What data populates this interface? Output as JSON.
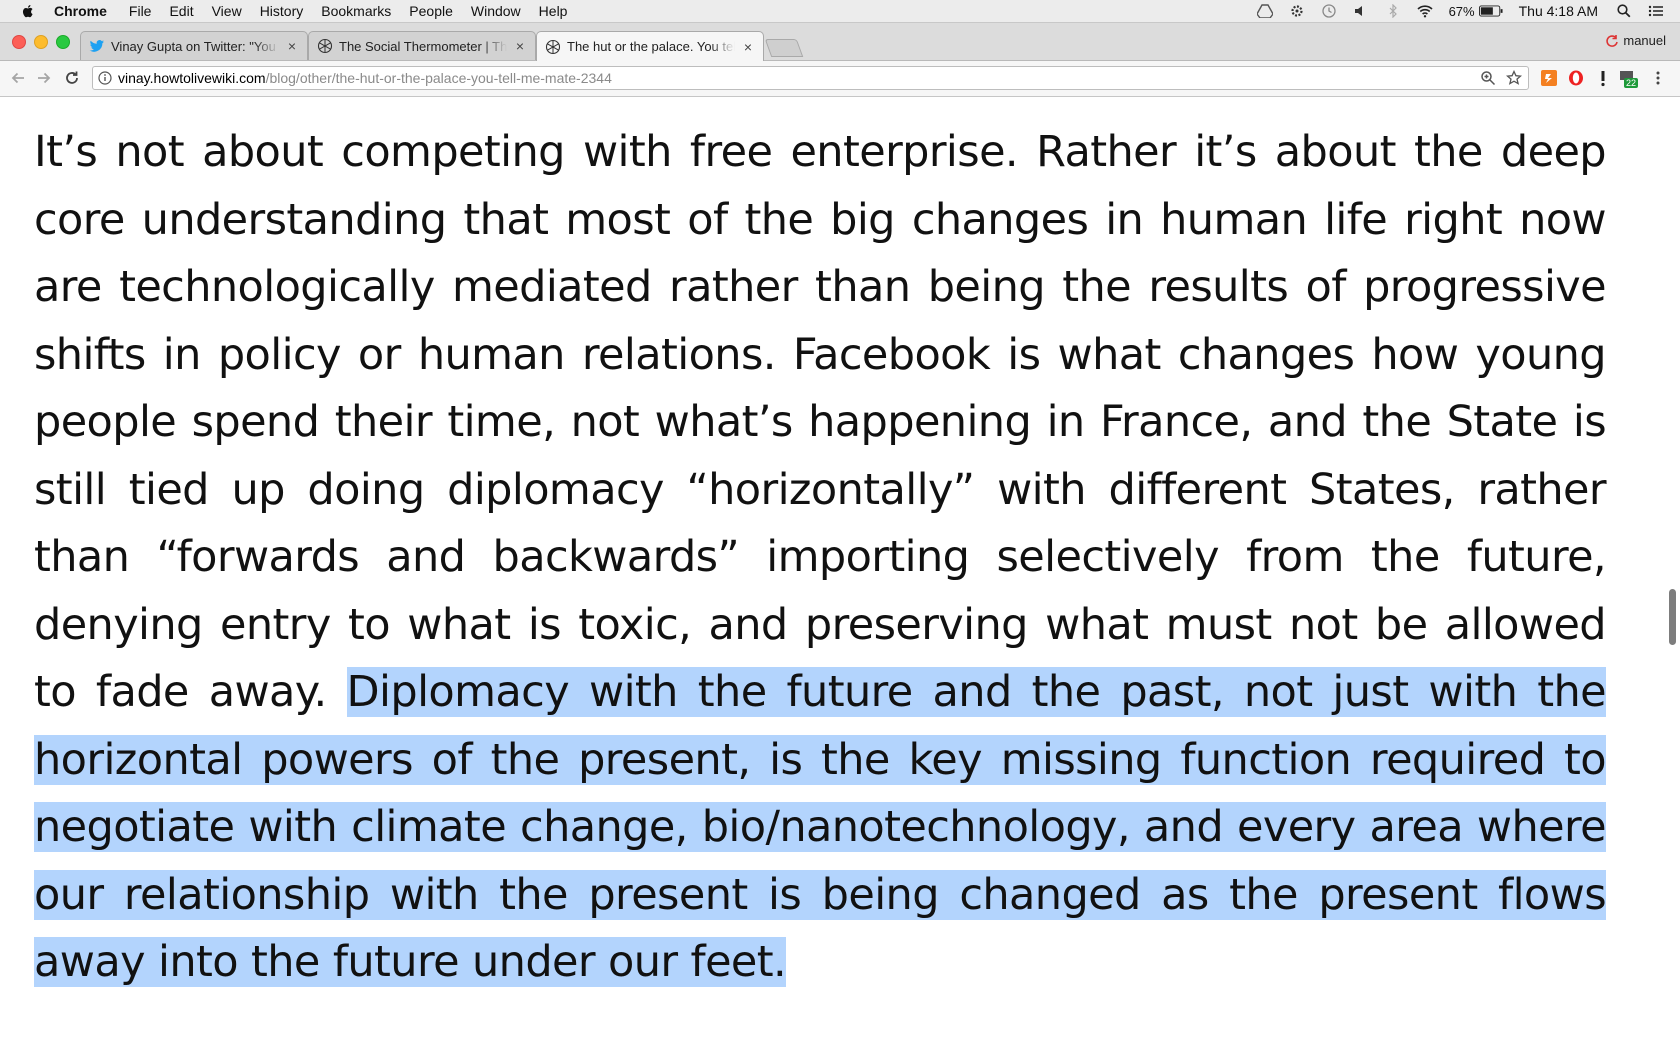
{
  "menubar": {
    "app": "Chrome",
    "items": [
      "File",
      "Edit",
      "View",
      "History",
      "Bookmarks",
      "People",
      "Window",
      "Help"
    ],
    "battery": "67%",
    "clock": "Thu 4:18 AM"
  },
  "tabs": [
    {
      "title": "Vinay Gupta on Twitter: \"You b",
      "favicon": "twitter-bird-icon",
      "close": "×"
    },
    {
      "title": "The Social Thermometer | The",
      "favicon": "hexayurt-icon",
      "close": "×"
    },
    {
      "title": "The hut or the palace. You tell",
      "favicon": "hexayurt-icon",
      "close": "×",
      "active": true
    }
  ],
  "profile": {
    "name": "manuel"
  },
  "toolbar": {
    "url_host": "vinay.howtolivewiki.com",
    "url_path": "/blog/other/the-hut-or-the-palace-you-tell-me-mate-2344",
    "extension_badge": "22"
  },
  "article": {
    "plain": "It’s not about competing with free enterprise. Rather it’s about the deep core understanding that most of the big changes in human life right now are technologically mediated rather than being the results of progressive shifts in policy or human relations. Facebook is what changes how young people spend their time, not what’s happening in France, and the State is still tied up doing diplomacy “horizontally” with different States, rather than “forwards and backwards” importing selectively from the future, denying entry to what is toxic, and preserving what must not be allowed to fade away. ",
    "selected": "Diplomacy with the future and the past, not just with the horizontal powers of the present, is the key missing function required to negotiate with climate change, bio/nanotechnology, and every area where our relationship with the present is being changed as the present flows away into the future under our feet."
  },
  "colors": {
    "selection": "#b3d4fd",
    "text": "#111111"
  }
}
